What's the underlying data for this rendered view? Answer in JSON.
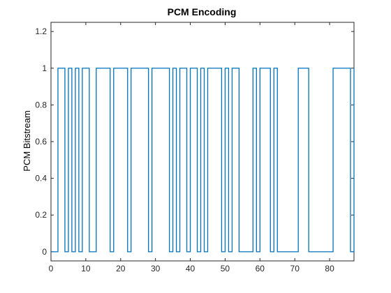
{
  "chart_data": {
    "type": "line",
    "step": true,
    "title": "PCM Encoding",
    "xlabel": "",
    "ylabel": "PCM Bitstream",
    "xlim": [
      0,
      87
    ],
    "ylim": [
      -0.05,
      1.25
    ],
    "xticks": [
      0,
      10,
      20,
      30,
      40,
      50,
      60,
      70,
      80
    ],
    "xtick_labels": [
      "0",
      "10",
      "20",
      "30",
      "40",
      "50",
      "60",
      "70",
      "80"
    ],
    "yticks": [
      0,
      0.2,
      0.4,
      0.6,
      0.8,
      1,
      1.2
    ],
    "ytick_labels": [
      "0",
      "0.2",
      "0.4",
      "0.6",
      "0.8",
      "1",
      "1.2"
    ],
    "grid": false,
    "line_color": "#0072BD",
    "series": [
      {
        "x": [
          0,
          2,
          4,
          5,
          6,
          7,
          8,
          9,
          11,
          13,
          17,
          18,
          22,
          23,
          28,
          29,
          34,
          35,
          36,
          37,
          39,
          40,
          42,
          43,
          44,
          45,
          49,
          50,
          51,
          52,
          54,
          58,
          59,
          60,
          63,
          64,
          65,
          71,
          74,
          81,
          86,
          87
        ],
        "y": [
          0,
          1,
          0,
          1,
          0,
          1,
          0,
          1,
          0,
          1,
          0,
          1,
          0,
          1,
          0,
          1,
          0,
          1,
          0,
          1,
          0,
          1,
          0,
          1,
          0,
          1,
          0,
          1,
          0,
          1,
          0,
          1,
          0,
          1,
          0,
          1,
          0,
          1,
          0,
          1,
          0,
          1
        ]
      }
    ]
  }
}
